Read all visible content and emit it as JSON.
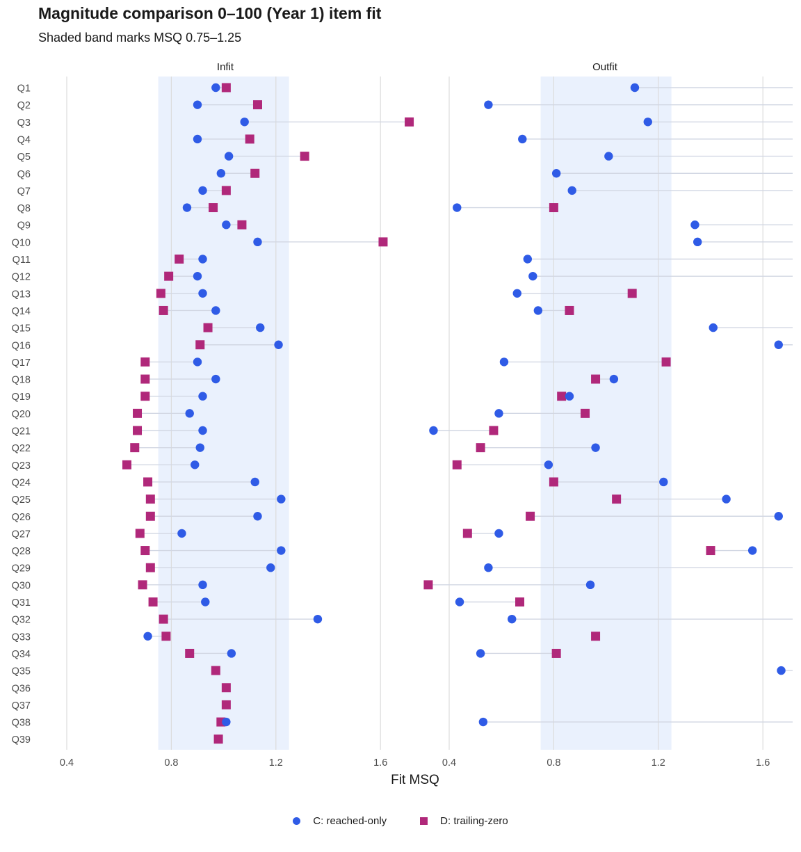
{
  "chart_data": {
    "type": "dumbbell",
    "title": "Magnitude comparison 0–100 (Year 1) item fit",
    "subtitle": "Shaded band marks MSQ 0.75–1.25",
    "xlabel": "Fit MSQ",
    "ylabel": "",
    "band": [
      0.75,
      1.25
    ],
    "xlim": [
      0.4,
      1.72
    ],
    "xticks": [
      0.4,
      0.8,
      1.2,
      1.6
    ],
    "tick_labels": [
      "0.4",
      "0.8",
      "1.2",
      "1.6"
    ],
    "categories": [
      "Q1",
      "Q2",
      "Q3",
      "Q4",
      "Q5",
      "Q6",
      "Q7",
      "Q8",
      "Q9",
      "Q10",
      "Q11",
      "Q12",
      "Q13",
      "Q14",
      "Q15",
      "Q16",
      "Q17",
      "Q18",
      "Q19",
      "Q20",
      "Q21",
      "Q22",
      "Q23",
      "Q24",
      "Q25",
      "Q26",
      "Q27",
      "Q28",
      "Q29",
      "Q30",
      "Q31",
      "Q32",
      "Q33",
      "Q34",
      "Q35",
      "Q36",
      "Q37",
      "Q38",
      "Q39"
    ],
    "legend": [
      "C: reached-only",
      "D: trailing-zero"
    ],
    "colors": {
      "C": "#2f5be6",
      "D": "#b0287a",
      "band": "#eaf1fd",
      "grid": "#dcdcdc",
      "segment": "#d2d7e3"
    },
    "panels": [
      {
        "name": "Infit",
        "C": [
          0.97,
          0.9,
          1.08,
          0.9,
          1.02,
          0.99,
          0.92,
          0.86,
          1.01,
          1.13,
          0.92,
          0.9,
          0.92,
          0.97,
          1.14,
          1.21,
          0.9,
          0.97,
          0.92,
          0.87,
          0.92,
          0.91,
          0.89,
          1.12,
          1.22,
          1.13,
          0.84,
          1.22,
          1.18,
          0.92,
          0.93,
          1.36,
          0.71,
          1.03,
          null,
          null,
          null,
          1.01,
          null
        ],
        "D": [
          1.01,
          1.13,
          1.71,
          1.1,
          1.31,
          1.12,
          1.01,
          0.96,
          1.07,
          1.61,
          0.83,
          0.79,
          0.76,
          0.77,
          0.94,
          0.91,
          0.7,
          0.7,
          0.7,
          0.67,
          0.67,
          0.66,
          0.63,
          0.71,
          0.72,
          0.72,
          0.68,
          0.7,
          0.72,
          0.69,
          0.73,
          0.77,
          0.78,
          0.87,
          0.97,
          1.01,
          1.01,
          0.99,
          0.98
        ]
      },
      {
        "name": "Outfit",
        "C": [
          1.11,
          0.55,
          1.16,
          0.68,
          1.01,
          0.81,
          0.87,
          0.43,
          1.34,
          1.35,
          0.7,
          0.72,
          0.66,
          0.74,
          1.41,
          1.66,
          0.61,
          1.03,
          0.86,
          0.59,
          0.34,
          0.96,
          0.78,
          1.22,
          1.46,
          1.66,
          0.59,
          1.56,
          0.55,
          0.94,
          0.44,
          0.64,
          null,
          0.52,
          1.67,
          null,
          null,
          0.53,
          null
        ],
        "D": [
          1.74,
          1.74,
          1.74,
          1.74,
          1.74,
          1.74,
          1.74,
          0.8,
          1.74,
          1.74,
          1.74,
          1.74,
          1.1,
          0.86,
          1.74,
          1.74,
          1.23,
          0.96,
          0.83,
          0.92,
          0.57,
          0.52,
          0.43,
          0.8,
          1.04,
          0.71,
          0.47,
          1.4,
          1.74,
          0.32,
          0.67,
          1.74,
          0.96,
          0.81,
          1.74,
          null,
          null,
          1.74,
          null
        ]
      }
    ]
  }
}
